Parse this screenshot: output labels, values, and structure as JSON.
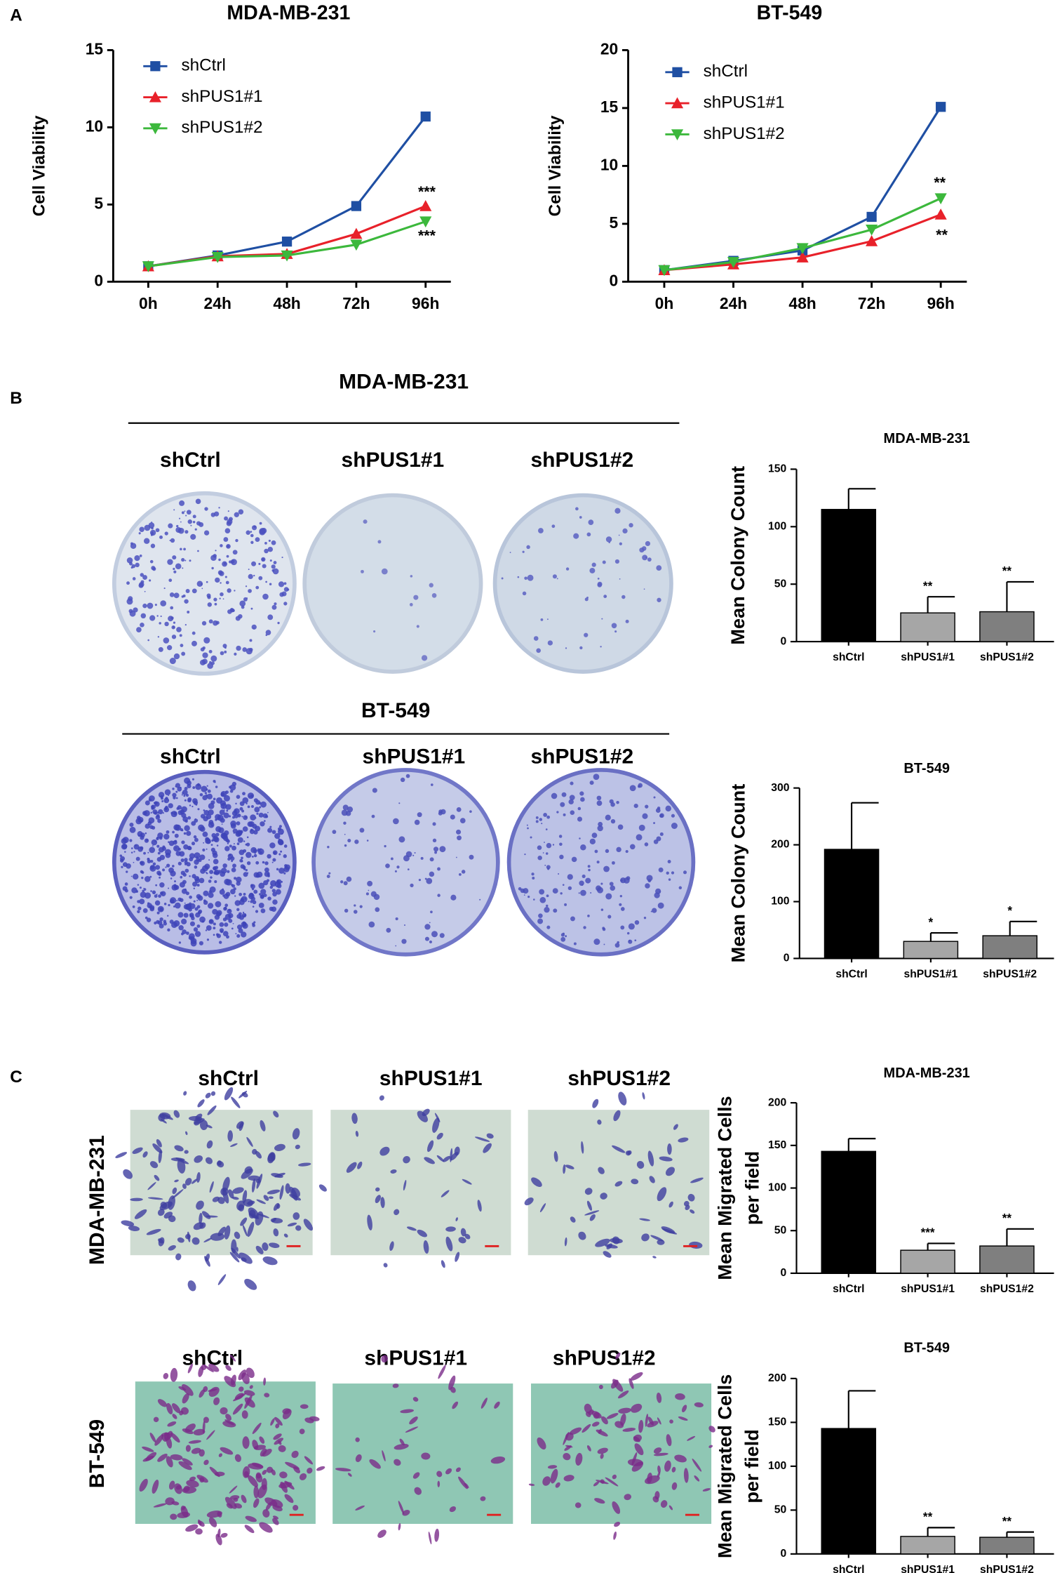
{
  "panel_labels": [
    "A",
    "B",
    "C"
  ],
  "colony_assay": {
    "rows": [
      {
        "title": "MDA-MB-231",
        "labels": [
          "shCtrl",
          "shPUS1#1",
          "shPUS1#2"
        ]
      },
      {
        "title": "BT-549",
        "labels": [
          "shCtrl",
          "shPUS1#1",
          "shPUS1#2"
        ]
      }
    ]
  },
  "transwell_assay": {
    "rows": [
      {
        "cell_line": "MDA-MB-231",
        "labels": [
          "shCtrl",
          "shPUS1#1",
          "shPUS1#2"
        ]
      },
      {
        "cell_line": "BT-549",
        "labels": [
          "shCtrl",
          "shPUS1#1",
          "shPUS1#2"
        ]
      }
    ]
  },
  "chart_data": [
    {
      "type": "line",
      "title": "MDA-MB-231",
      "y_label": "Cell Viability",
      "categories": [
        "0h",
        "24h",
        "48h",
        "72h",
        "96h"
      ],
      "series": [
        {
          "name": "shCtrl",
          "color": "#1f4fa3",
          "marker": "square",
          "values": [
            1.0,
            1.7,
            2.6,
            4.9,
            10.7
          ]
        },
        {
          "name": "shPUS1#1",
          "color": "#e8212a",
          "marker": "triangle-up",
          "values": [
            1.0,
            1.65,
            1.8,
            3.1,
            4.9
          ]
        },
        {
          "name": "shPUS1#2",
          "color": "#3cb83c",
          "marker": "triangle-down",
          "values": [
            1.0,
            1.6,
            1.7,
            2.4,
            3.9
          ]
        }
      ],
      "ylim": [
        0,
        15
      ],
      "yticks": [
        0,
        5,
        10,
        15
      ],
      "annotations": [
        "***",
        "***"
      ]
    },
    {
      "type": "line",
      "title": "BT-549",
      "y_label": "Cell Viability",
      "categories": [
        "0h",
        "24h",
        "48h",
        "72h",
        "96h"
      ],
      "series": [
        {
          "name": "shCtrl",
          "color": "#1f4fa3",
          "marker": "square",
          "values": [
            1.0,
            1.8,
            2.7,
            5.6,
            15.1
          ]
        },
        {
          "name": "shPUS1#1",
          "color": "#e8212a",
          "marker": "triangle-up",
          "values": [
            1.0,
            1.5,
            2.1,
            3.5,
            5.8
          ]
        },
        {
          "name": "shPUS1#2",
          "color": "#3cb83c",
          "marker": "triangle-down",
          "values": [
            1.0,
            1.7,
            2.9,
            4.5,
            7.2
          ]
        }
      ],
      "ylim": [
        0,
        20
      ],
      "yticks": [
        0,
        5,
        10,
        15,
        20
      ],
      "annotations": [
        "**",
        "**"
      ]
    },
    {
      "type": "bar",
      "title": "MDA-MB-231",
      "y_label": "Mean Colony Count",
      "categories": [
        "shCtrl",
        "shPUS1#1",
        "shPUS1#2"
      ],
      "values": [
        115,
        25,
        26
      ],
      "errors": [
        18,
        14,
        26
      ],
      "colors": [
        "#000000",
        "#a6a6a6",
        "#7f7f7f"
      ],
      "ylim": [
        0,
        150
      ],
      "yticks": [
        0,
        50,
        100,
        150
      ],
      "annotations": [
        "**",
        "**"
      ]
    },
    {
      "type": "bar",
      "title": "BT-549",
      "y_label": "Mean Colony Count",
      "categories": [
        "shCtrl",
        "shPUS1#1",
        "shPUS1#2"
      ],
      "values": [
        192,
        30,
        40
      ],
      "errors": [
        82,
        15,
        25
      ],
      "colors": [
        "#000000",
        "#a6a6a6",
        "#7f7f7f"
      ],
      "ylim": [
        0,
        300
      ],
      "yticks": [
        0,
        100,
        200,
        300
      ],
      "annotations": [
        "*",
        "*"
      ]
    },
    {
      "type": "bar",
      "title": "MDA-MB-231",
      "y_label": [
        "Mean Migrated Cells",
        "per field"
      ],
      "categories": [
        "shCtrl",
        "shPUS1#1",
        "shPUS1#2"
      ],
      "values": [
        143,
        27,
        32
      ],
      "errors": [
        15,
        8,
        20
      ],
      "colors": [
        "#000000",
        "#a6a6a6",
        "#7f7f7f"
      ],
      "ylim": [
        0,
        200
      ],
      "yticks": [
        0,
        50,
        100,
        150,
        200
      ],
      "annotations": [
        "***",
        "**"
      ]
    },
    {
      "type": "bar",
      "title": "BT-549",
      "y_label": [
        "Mean Migrated Cells",
        "per field"
      ],
      "categories": [
        "shCtrl",
        "shPUS1#1",
        "shPUS1#2"
      ],
      "values": [
        143,
        20,
        19
      ],
      "errors": [
        43,
        10,
        6
      ],
      "colors": [
        "#000000",
        "#a6a6a6",
        "#7f7f7f"
      ],
      "ylim": [
        0,
        200
      ],
      "yticks": [
        0,
        50,
        100,
        150,
        200
      ],
      "annotations": [
        "**",
        "**"
      ]
    }
  ]
}
